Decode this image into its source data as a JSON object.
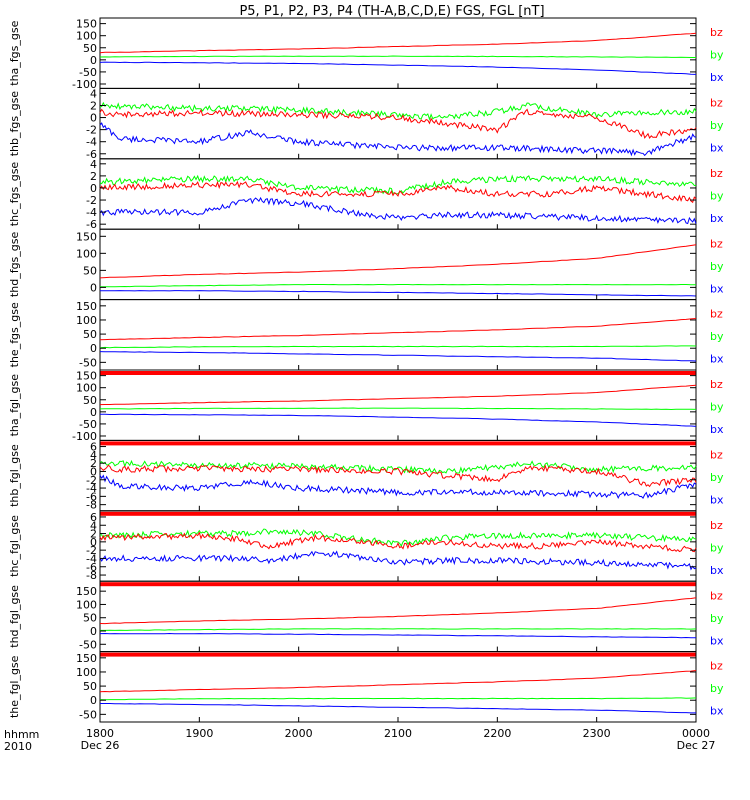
{
  "title": "P5, P1, P2, P3, P4 (TH-A,B,C,D,E) FGS, FGL [nT]",
  "colors": {
    "bx": "#0000ff",
    "by": "#00ff00",
    "bz": "#ff0000",
    "flag": "#ff0000",
    "axis": "#000000"
  },
  "series_names": [
    "bz",
    "by",
    "bx"
  ],
  "xaxis": {
    "label_line1": "hhmm",
    "label_line2": "2010",
    "start_date": "Dec 26",
    "end_date": "Dec 27",
    "ticks": [
      "1800",
      "1900",
      "2000",
      "2100",
      "2200",
      "2300",
      "0000"
    ]
  },
  "chart_data": [
    {
      "type": "line",
      "ylabel": "tha_fgs_gse",
      "ylim": [
        -110,
        165
      ],
      "yticks": [
        150,
        100,
        50,
        0,
        -50,
        -100
      ],
      "series": [
        {
          "name": "bz",
          "kind": "smooth",
          "x": [
            18,
            19,
            20,
            21,
            22,
            23,
            24
          ],
          "values": [
            30,
            38,
            45,
            55,
            65,
            80,
            110
          ]
        },
        {
          "name": "by",
          "kind": "smooth",
          "x": [
            18,
            19,
            20,
            21,
            22,
            23,
            24
          ],
          "values": [
            12,
            14,
            15,
            15,
            14,
            12,
            10
          ]
        },
        {
          "name": "bx",
          "kind": "smooth",
          "x": [
            18,
            19,
            20,
            21,
            22,
            23,
            24
          ],
          "values": [
            -10,
            -12,
            -15,
            -22,
            -30,
            -42,
            -60
          ]
        }
      ]
    },
    {
      "type": "line",
      "ylabel": "thb_fgs_gse",
      "ylim": [
        -6.5,
        4.5
      ],
      "yticks": [
        4,
        2,
        0,
        -2,
        -4,
        -6
      ],
      "series": [
        {
          "name": "bz",
          "kind": "noisy",
          "x": [
            18,
            18.2,
            19,
            19.5,
            20,
            20.5,
            21,
            21.5,
            22,
            22.3,
            23,
            23.5,
            24
          ],
          "values": [
            1,
            0.5,
            0.8,
            0.6,
            0.5,
            0.3,
            0,
            -1,
            -2,
            1,
            0,
            -3,
            -2
          ]
        },
        {
          "name": "by",
          "kind": "noisy",
          "x": [
            18,
            19,
            19.5,
            20,
            21,
            21.5,
            22,
            22.3,
            23,
            24
          ],
          "values": [
            2,
            1.5,
            1.5,
            1.2,
            0.5,
            0,
            1,
            2,
            0.5,
            1
          ]
        },
        {
          "name": "bx",
          "kind": "noisy",
          "x": [
            18,
            18.2,
            19,
            19.5,
            20,
            20.5,
            21,
            22,
            23,
            23.5,
            24
          ],
          "values": [
            -1,
            -3.5,
            -4,
            -2.5,
            -4,
            -4.5,
            -5,
            -5,
            -5.5,
            -5.8,
            -3
          ]
        }
      ]
    },
    {
      "type": "line",
      "ylabel": "thc_fgs_gse",
      "ylim": [
        -6.5,
        4.5
      ],
      "yticks": [
        4,
        2,
        0,
        -2,
        -4,
        -6
      ],
      "series": [
        {
          "name": "bz",
          "kind": "noisy",
          "x": [
            18,
            19,
            19.5,
            20,
            20.5,
            21,
            21.5,
            22,
            22.5,
            23,
            24
          ],
          "values": [
            0,
            0.5,
            0.5,
            -1,
            -1,
            -1,
            0,
            -1,
            -1,
            0,
            -2
          ]
        },
        {
          "name": "by",
          "kind": "noisy",
          "x": [
            18,
            19,
            19.5,
            20,
            21,
            21.5,
            22,
            23,
            24
          ],
          "values": [
            1,
            1.5,
            1.5,
            0,
            -0.5,
            1,
            1.5,
            1.5,
            0.5
          ]
        },
        {
          "name": "bx",
          "kind": "noisy",
          "x": [
            18,
            19,
            19.5,
            20,
            20.5,
            21,
            21.5,
            22,
            23,
            24
          ],
          "values": [
            -4,
            -4,
            -2,
            -2.5,
            -4,
            -5,
            -4.5,
            -4.5,
            -5,
            -5.5
          ]
        }
      ]
    },
    {
      "type": "line",
      "ylabel": "thd_fgs_gse",
      "ylim": [
        -30,
        165
      ],
      "yticks": [
        150,
        100,
        50,
        0
      ],
      "series": [
        {
          "name": "bz",
          "kind": "smooth",
          "x": [
            18,
            19,
            20,
            21,
            22,
            23,
            24
          ],
          "values": [
            28,
            38,
            45,
            55,
            68,
            85,
            125
          ]
        },
        {
          "name": "by",
          "kind": "smooth",
          "x": [
            18,
            19,
            20,
            21,
            22,
            23,
            24
          ],
          "values": [
            2,
            5,
            8,
            8,
            8,
            8,
            8
          ]
        },
        {
          "name": "bx",
          "kind": "smooth",
          "x": [
            18,
            19,
            20,
            21,
            22,
            23,
            24
          ],
          "values": [
            -10,
            -10,
            -12,
            -15,
            -18,
            -22,
            -25
          ]
        }
      ]
    },
    {
      "type": "line",
      "ylabel": "the_fgs_gse",
      "ylim": [
        -70,
        165
      ],
      "yticks": [
        150,
        100,
        50,
        0,
        -50
      ],
      "series": [
        {
          "name": "bz",
          "kind": "smooth",
          "x": [
            18,
            19,
            20,
            21,
            22,
            23,
            24
          ],
          "values": [
            30,
            38,
            45,
            55,
            65,
            78,
            105
          ]
        },
        {
          "name": "by",
          "kind": "smooth",
          "x": [
            18,
            19,
            20,
            21,
            22,
            23,
            24
          ],
          "values": [
            2,
            5,
            6,
            6,
            6,
            6,
            8
          ]
        },
        {
          "name": "bx",
          "kind": "smooth",
          "x": [
            18,
            19,
            20,
            21,
            22,
            23,
            24
          ],
          "values": [
            -12,
            -15,
            -20,
            -25,
            -30,
            -35,
            -45
          ]
        }
      ]
    },
    {
      "type": "line",
      "ylabel": "tha_fgl_gse",
      "ylim": [
        -110,
        165
      ],
      "yticks": [
        150,
        100,
        50,
        0,
        -50,
        -100
      ],
      "series": [
        {
          "name": "bz",
          "kind": "smooth",
          "x": [
            18,
            19,
            20,
            21,
            22,
            23,
            24
          ],
          "values": [
            30,
            38,
            45,
            55,
            65,
            80,
            110
          ]
        },
        {
          "name": "by",
          "kind": "smooth",
          "x": [
            18,
            19,
            20,
            21,
            22,
            23,
            24
          ],
          "values": [
            12,
            14,
            15,
            15,
            14,
            12,
            10
          ]
        },
        {
          "name": "bx",
          "kind": "smooth",
          "x": [
            18,
            19,
            20,
            21,
            22,
            23,
            24
          ],
          "values": [
            -10,
            -12,
            -15,
            -22,
            -30,
            -42,
            -60
          ]
        }
      ]
    },
    {
      "type": "line",
      "ylabel": "thb_fgl_gse",
      "ylim": [
        -9,
        7
      ],
      "yticks": [
        6,
        4,
        2,
        0,
        -2,
        -4,
        -6,
        -8
      ],
      "series": [
        {
          "name": "bz",
          "kind": "noisy",
          "x": [
            18,
            18.2,
            19,
            19.5,
            20,
            20.5,
            21,
            21.5,
            22,
            22.3,
            23,
            23.5,
            24
          ],
          "values": [
            1,
            0.5,
            0.8,
            0.6,
            0.5,
            0.3,
            0,
            -1,
            -2,
            1,
            0,
            -3,
            -2
          ]
        },
        {
          "name": "by",
          "kind": "noisy",
          "x": [
            18,
            19,
            19.5,
            20,
            21,
            21.5,
            22,
            22.3,
            23,
            24
          ],
          "values": [
            2,
            1.5,
            1.5,
            1.2,
            0.5,
            0,
            1,
            2,
            0.5,
            1
          ]
        },
        {
          "name": "bx",
          "kind": "noisy",
          "x": [
            18,
            18.2,
            19,
            19.5,
            20,
            20.5,
            21,
            22,
            23,
            23.5,
            24
          ],
          "values": [
            -1,
            -3.5,
            -4,
            -2.5,
            -4,
            -4.5,
            -5,
            -5,
            -5.5,
            -5.8,
            -3
          ]
        }
      ]
    },
    {
      "type": "line",
      "ylabel": "thc_fgl_gse",
      "ylim": [
        -9,
        7
      ],
      "yticks": [
        6,
        4,
        2,
        0,
        -2,
        -4,
        -6,
        -8
      ],
      "series": [
        {
          "name": "bz",
          "kind": "noisy",
          "x": [
            18,
            19,
            19.4,
            19.7,
            20.2,
            21,
            21.5,
            22,
            22.5,
            23,
            24
          ],
          "values": [
            1,
            1.5,
            0.5,
            -1,
            1,
            -1,
            0,
            -1,
            -1,
            0,
            -2
          ]
        },
        {
          "name": "by",
          "kind": "noisy",
          "x": [
            18,
            19,
            19.4,
            19.7,
            20.2,
            21,
            21.5,
            22,
            23,
            24
          ],
          "values": [
            1.5,
            2,
            2,
            2.5,
            2,
            -0.5,
            1,
            1.5,
            1.5,
            0.5
          ]
        },
        {
          "name": "bx",
          "kind": "noisy",
          "x": [
            18,
            19,
            19.4,
            19.7,
            20.2,
            21,
            21.5,
            22,
            23,
            24
          ],
          "values": [
            -4,
            -4,
            -4,
            -4.5,
            -2.5,
            -5,
            -4.5,
            -4.5,
            -5,
            -6
          ]
        }
      ]
    },
    {
      "type": "line",
      "ylabel": "thd_fgl_gse",
      "ylim": [
        -70,
        180
      ],
      "yticks": [
        150,
        100,
        50,
        0,
        -50
      ],
      "series": [
        {
          "name": "bz",
          "kind": "smooth",
          "x": [
            18,
            19,
            20,
            21,
            22,
            23,
            24
          ],
          "values": [
            28,
            38,
            45,
            55,
            68,
            85,
            125
          ]
        },
        {
          "name": "by",
          "kind": "smooth",
          "x": [
            18,
            19,
            20,
            21,
            22,
            23,
            24
          ],
          "values": [
            2,
            5,
            8,
            8,
            8,
            8,
            8
          ]
        },
        {
          "name": "bx",
          "kind": "smooth",
          "x": [
            18,
            19,
            20,
            21,
            22,
            23,
            24
          ],
          "values": [
            -10,
            -10,
            -12,
            -15,
            -18,
            -22,
            -25
          ]
        }
      ]
    },
    {
      "type": "line",
      "ylabel": "the_fgl_gse",
      "ylim": [
        -70,
        165
      ],
      "yticks": [
        150,
        100,
        50,
        0,
        -50
      ],
      "series": [
        {
          "name": "bz",
          "kind": "smooth",
          "x": [
            18,
            19,
            20,
            21,
            22,
            23,
            24
          ],
          "values": [
            30,
            38,
            45,
            55,
            65,
            78,
            105
          ]
        },
        {
          "name": "by",
          "kind": "smooth",
          "x": [
            18,
            19,
            20,
            21,
            22,
            23,
            24
          ],
          "values": [
            2,
            5,
            6,
            6,
            6,
            6,
            8
          ]
        },
        {
          "name": "bx",
          "kind": "smooth",
          "x": [
            18,
            19,
            20,
            21,
            22,
            23,
            24
          ],
          "values": [
            -12,
            -15,
            -20,
            -25,
            -30,
            -35,
            -45
          ]
        }
      ]
    }
  ]
}
